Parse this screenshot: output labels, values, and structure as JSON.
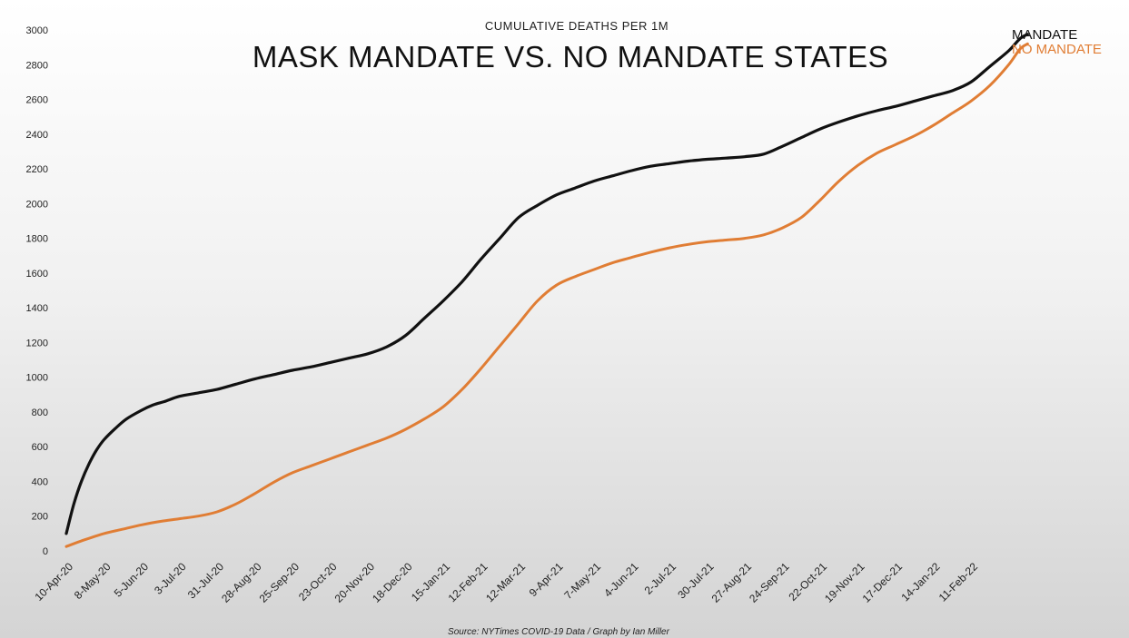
{
  "chart_data": {
    "type": "line",
    "title": "MASK MANDATE VS. NO MANDATE STATES",
    "subtitle": "CUMULATIVE  DEATHS PER 1M",
    "source": "Source: NYTimes COVID-19 Data / Graph by Ian Miller",
    "xlabel": "",
    "ylabel": "",
    "ylim": [
      0,
      3000
    ],
    "yticks": [
      0,
      200,
      400,
      600,
      800,
      1000,
      1200,
      1400,
      1600,
      1800,
      2000,
      2200,
      2400,
      2600,
      2800,
      3000
    ],
    "x_tick_labels": [
      "10-Apr-20",
      "8-May-20",
      "5-Jun-20",
      "3-Jul-20",
      "31-Jul-20",
      "28-Aug-20",
      "25-Sep-20",
      "23-Oct-20",
      "20-Nov-20",
      "18-Dec-20",
      "15-Jan-21",
      "12-Feb-21",
      "12-Mar-21",
      "9-Apr-21",
      "7-May-21",
      "4-Jun-21",
      "2-Jul-21",
      "30-Jul-21",
      "27-Aug-21",
      "24-Sep-21",
      "22-Oct-21",
      "19-Nov-21",
      "17-Dec-21",
      "14-Jan-22",
      "11-Feb-22"
    ],
    "x_max_index": 25.3,
    "grid": false,
    "legend": "inline labels at line ends (top-right)",
    "series": [
      {
        "name": "MANDATE",
        "color": "#111111",
        "points": [
          [
            0,
            100
          ],
          [
            0.2,
            270
          ],
          [
            0.4,
            400
          ],
          [
            0.6,
            500
          ],
          [
            0.8,
            580
          ],
          [
            1,
            640
          ],
          [
            1.3,
            705
          ],
          [
            1.6,
            760
          ],
          [
            2,
            810
          ],
          [
            2.3,
            840
          ],
          [
            2.6,
            860
          ],
          [
            3,
            890
          ],
          [
            3.5,
            910
          ],
          [
            4,
            930
          ],
          [
            4.5,
            960
          ],
          [
            5,
            990
          ],
          [
            5.5,
            1015
          ],
          [
            6,
            1040
          ],
          [
            6.5,
            1060
          ],
          [
            7,
            1085
          ],
          [
            7.5,
            1110
          ],
          [
            8,
            1135
          ],
          [
            8.5,
            1175
          ],
          [
            9,
            1240
          ],
          [
            9.5,
            1340
          ],
          [
            10,
            1440
          ],
          [
            10.5,
            1550
          ],
          [
            11,
            1680
          ],
          [
            11.5,
            1800
          ],
          [
            12,
            1920
          ],
          [
            12.5,
            1990
          ],
          [
            13,
            2050
          ],
          [
            13.5,
            2090
          ],
          [
            14,
            2130
          ],
          [
            14.5,
            2160
          ],
          [
            15,
            2190
          ],
          [
            15.5,
            2215
          ],
          [
            16,
            2230
          ],
          [
            16.5,
            2245
          ],
          [
            17,
            2255
          ],
          [
            17.5,
            2262
          ],
          [
            18,
            2270
          ],
          [
            18.5,
            2285
          ],
          [
            19,
            2330
          ],
          [
            19.5,
            2380
          ],
          [
            20,
            2430
          ],
          [
            20.5,
            2470
          ],
          [
            21,
            2505
          ],
          [
            21.5,
            2535
          ],
          [
            22,
            2560
          ],
          [
            22.5,
            2590
          ],
          [
            23,
            2620
          ],
          [
            23.5,
            2650
          ],
          [
            24,
            2700
          ],
          [
            24.5,
            2790
          ],
          [
            25,
            2880
          ],
          [
            25.3,
            2950
          ],
          [
            25.5,
            2975
          ]
        ]
      },
      {
        "name": "NO MANDATE",
        "color": "#e07d34",
        "points": [
          [
            0,
            25
          ],
          [
            0.5,
            65
          ],
          [
            1,
            100
          ],
          [
            1.5,
            125
          ],
          [
            2,
            150
          ],
          [
            2.5,
            170
          ],
          [
            3,
            185
          ],
          [
            3.5,
            200
          ],
          [
            4,
            225
          ],
          [
            4.5,
            270
          ],
          [
            5,
            330
          ],
          [
            5.5,
            395
          ],
          [
            6,
            450
          ],
          [
            6.5,
            490
          ],
          [
            7,
            530
          ],
          [
            7.5,
            570
          ],
          [
            8,
            610
          ],
          [
            8.5,
            650
          ],
          [
            9,
            700
          ],
          [
            9.5,
            760
          ],
          [
            10,
            830
          ],
          [
            10.5,
            930
          ],
          [
            11,
            1050
          ],
          [
            11.5,
            1180
          ],
          [
            12,
            1310
          ],
          [
            12.5,
            1440
          ],
          [
            13,
            1530
          ],
          [
            13.5,
            1580
          ],
          [
            14,
            1620
          ],
          [
            14.5,
            1660
          ],
          [
            15,
            1690
          ],
          [
            15.5,
            1720
          ],
          [
            16,
            1745
          ],
          [
            16.5,
            1765
          ],
          [
            17,
            1780
          ],
          [
            17.5,
            1790
          ],
          [
            18,
            1800
          ],
          [
            18.5,
            1820
          ],
          [
            19,
            1860
          ],
          [
            19.5,
            1920
          ],
          [
            20,
            2020
          ],
          [
            20.5,
            2130
          ],
          [
            21,
            2220
          ],
          [
            21.5,
            2290
          ],
          [
            22,
            2340
          ],
          [
            22.5,
            2390
          ],
          [
            23,
            2450
          ],
          [
            23.5,
            2520
          ],
          [
            24,
            2590
          ],
          [
            24.5,
            2680
          ],
          [
            25,
            2800
          ],
          [
            25.3,
            2890
          ],
          [
            25.5,
            2920
          ]
        ]
      }
    ]
  }
}
